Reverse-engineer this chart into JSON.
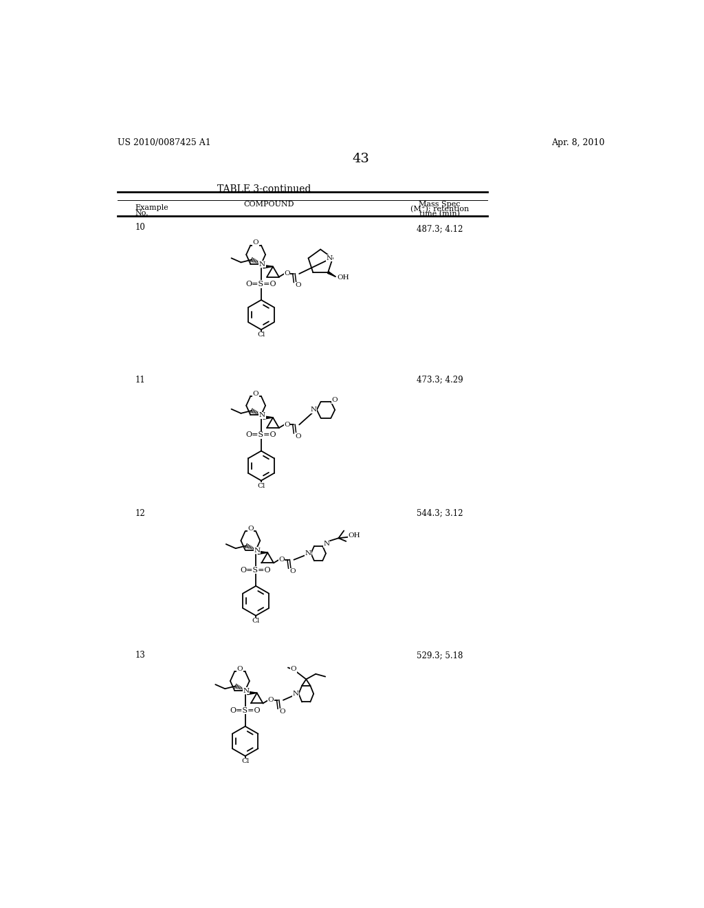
{
  "background_color": "#ffffff",
  "header_left": "US 2010/0087425 A1",
  "header_right": "Apr. 8, 2010",
  "page_number": "43",
  "table_title": "TABLE 3-continued",
  "rows": [
    {
      "example": "10",
      "mass_spec": "487.3; 4.12"
    },
    {
      "example": "11",
      "mass_spec": "473.3; 4.29"
    },
    {
      "example": "12",
      "mass_spec": "544.3; 3.12"
    },
    {
      "example": "13",
      "mass_spec": "529.3; 5.18"
    }
  ]
}
